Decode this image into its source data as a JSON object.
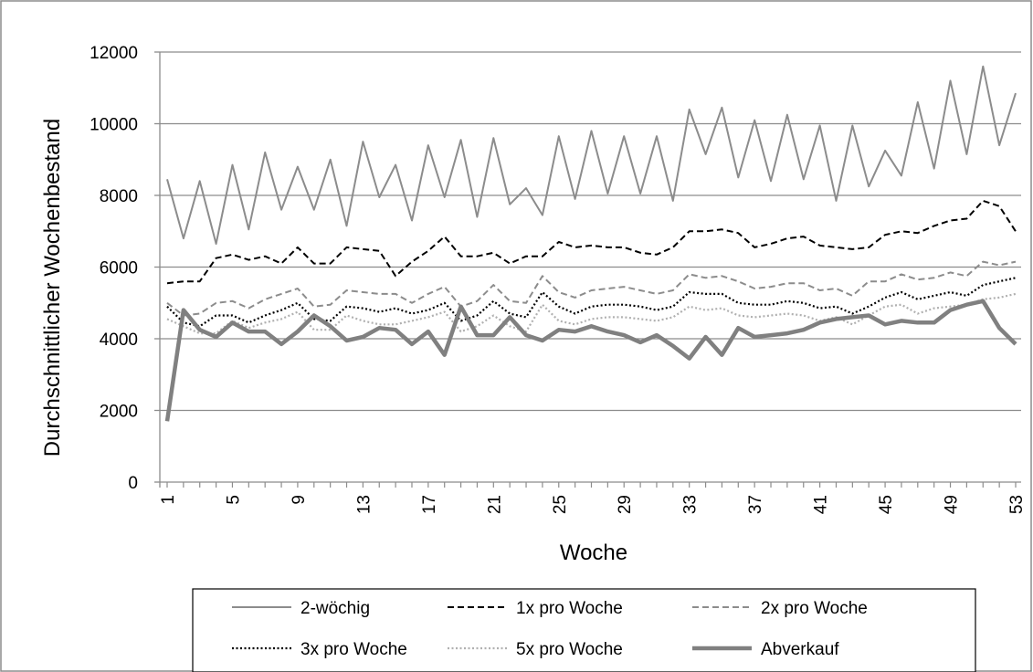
{
  "chart_data": {
    "type": "line",
    "title": "",
    "xlabel": "Woche",
    "ylabel": "Durchschnittlicher Wochenbestand",
    "ylim": [
      0,
      12000
    ],
    "yticks": [
      "0",
      "2000",
      "4000",
      "6000",
      "8000",
      "10000",
      "12000"
    ],
    "xlim": [
      1,
      53
    ],
    "x": [
      1,
      2,
      3,
      4,
      5,
      6,
      7,
      8,
      9,
      10,
      11,
      12,
      13,
      14,
      15,
      16,
      17,
      18,
      19,
      20,
      21,
      22,
      23,
      24,
      25,
      26,
      27,
      28,
      29,
      30,
      31,
      32,
      33,
      34,
      35,
      36,
      37,
      38,
      39,
      40,
      41,
      42,
      43,
      44,
      45,
      46,
      47,
      48,
      49,
      50,
      51,
      52,
      53
    ],
    "xtick_labels": [
      "1",
      "5",
      "9",
      "13",
      "17",
      "21",
      "25",
      "29",
      "33",
      "37",
      "41",
      "45",
      "49",
      "53"
    ],
    "grid": "horizontal",
    "legend_position": "bottom",
    "series": [
      {
        "name": "2-wöchig",
        "color": "#8c8c8c",
        "style": "solid",
        "values": [
          8450,
          6800,
          8400,
          6650,
          8850,
          7050,
          9200,
          7600,
          8800,
          7600,
          9000,
          7150,
          9500,
          7950,
          8850,
          7300,
          9400,
          7950,
          9550,
          7400,
          9600,
          7750,
          8200,
          7450,
          9650,
          7900,
          9800,
          8050,
          9650,
          8050,
          9650,
          7850,
          10400,
          9150,
          10450,
          8500,
          10100,
          8400,
          10250,
          8450,
          9950,
          7850,
          9950,
          8250,
          9250,
          8550,
          10600,
          8750,
          11200,
          9150,
          11600,
          9400,
          10850
        ]
      },
      {
        "name": "1x pro Woche",
        "color": "#000000",
        "style": "dashed",
        "values": [
          5550,
          5600,
          5600,
          6250,
          6350,
          6200,
          6300,
          6100,
          6550,
          6100,
          6100,
          6550,
          6500,
          6450,
          5750,
          6150,
          6450,
          6850,
          6300,
          6300,
          6400,
          6100,
          6300,
          6300,
          6700,
          6550,
          6600,
          6550,
          6550,
          6400,
          6350,
          6550,
          7000,
          7000,
          7050,
          6950,
          6550,
          6650,
          6800,
          6850,
          6600,
          6550,
          6500,
          6550,
          6900,
          7000,
          6950,
          7150,
          7300,
          7350,
          7850,
          7700,
          7000
        ]
      },
      {
        "name": "2x pro Woche",
        "color": "#8c8c8c",
        "style": "dashed",
        "values": [
          5000,
          4650,
          4700,
          5000,
          5050,
          4850,
          5100,
          5250,
          5400,
          4900,
          4950,
          5350,
          5300,
          5250,
          5250,
          5000,
          5250,
          5450,
          4900,
          5050,
          5500,
          5050,
          5000,
          5750,
          5300,
          5150,
          5350,
          5400,
          5450,
          5350,
          5250,
          5350,
          5800,
          5700,
          5750,
          5600,
          5400,
          5450,
          5550,
          5550,
          5350,
          5400,
          5200,
          5600,
          5600,
          5800,
          5650,
          5700,
          5850,
          5750,
          6150,
          6050,
          6150
        ]
      },
      {
        "name": "3x pro Woche",
        "color": "#000000",
        "style": "dotted",
        "values": [
          4900,
          4450,
          4350,
          4650,
          4650,
          4450,
          4650,
          4800,
          5000,
          4550,
          4500,
          4900,
          4850,
          4750,
          4850,
          4700,
          4800,
          5000,
          4500,
          4650,
          5050,
          4700,
          4600,
          5300,
          4900,
          4700,
          4900,
          4950,
          4950,
          4900,
          4800,
          4900,
          5300,
          5250,
          5250,
          5000,
          4950,
          4950,
          5050,
          5000,
          4850,
          4900,
          4700,
          4900,
          5150,
          5300,
          5100,
          5200,
          5300,
          5200,
          5500,
          5600,
          5700
        ]
      },
      {
        "name": "5x pro Woche",
        "color": "#b0b0b0",
        "style": "dotted",
        "values": [
          4550,
          4350,
          4150,
          4150,
          4500,
          4300,
          4450,
          4550,
          4750,
          4250,
          4250,
          4650,
          4500,
          4400,
          4400,
          4500,
          4600,
          4750,
          4200,
          4350,
          4650,
          4350,
          4200,
          4950,
          4500,
          4400,
          4550,
          4600,
          4600,
          4550,
          4500,
          4600,
          4900,
          4800,
          4850,
          4650,
          4600,
          4650,
          4700,
          4650,
          4500,
          4600,
          4400,
          4650,
          4900,
          4950,
          4700,
          4850,
          4900,
          4950,
          5100,
          5150,
          5250
        ]
      },
      {
        "name": "Abverkauf",
        "color": "#808080",
        "style": "thick",
        "values": [
          1700,
          4800,
          4250,
          4050,
          4450,
          4200,
          4200,
          3850,
          4200,
          4650,
          4350,
          3950,
          4050,
          4300,
          4250,
          3850,
          4200,
          3550,
          4900,
          4100,
          4100,
          4600,
          4100,
          3950,
          4250,
          4200,
          4350,
          4200,
          4100,
          3900,
          4100,
          3800,
          3450,
          4050,
          3550,
          4300,
          4050,
          4100,
          4150,
          4250,
          4450,
          4550,
          4600,
          4650,
          4400,
          4500,
          4450,
          4450,
          4800,
          4950,
          5050,
          4300,
          3850
        ]
      }
    ]
  }
}
